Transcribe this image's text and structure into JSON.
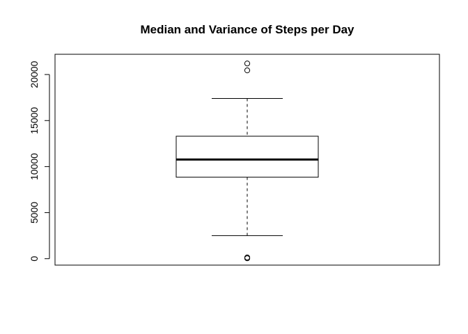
{
  "chart_data": {
    "type": "boxplot",
    "title": "Median and Variance of Steps per Day",
    "xlabel": "",
    "ylabel": "",
    "ylim": [
      -700,
      22200
    ],
    "yticks": [
      0,
      5000,
      10000,
      15000,
      20000
    ],
    "ytick_labels": [
      "0",
      "5000",
      "10000",
      "15000",
      "20000"
    ],
    "box": {
      "whisker_low": 2500,
      "q1": 8850,
      "median": 10770,
      "q3": 13300,
      "whisker_high": 17400
    },
    "outliers": [
      21200,
      20450,
      40,
      130
    ],
    "grid": false,
    "legend": "none",
    "colors": {
      "line": "#000000",
      "box_fill": "#ffffff",
      "background": "#ffffff"
    }
  }
}
